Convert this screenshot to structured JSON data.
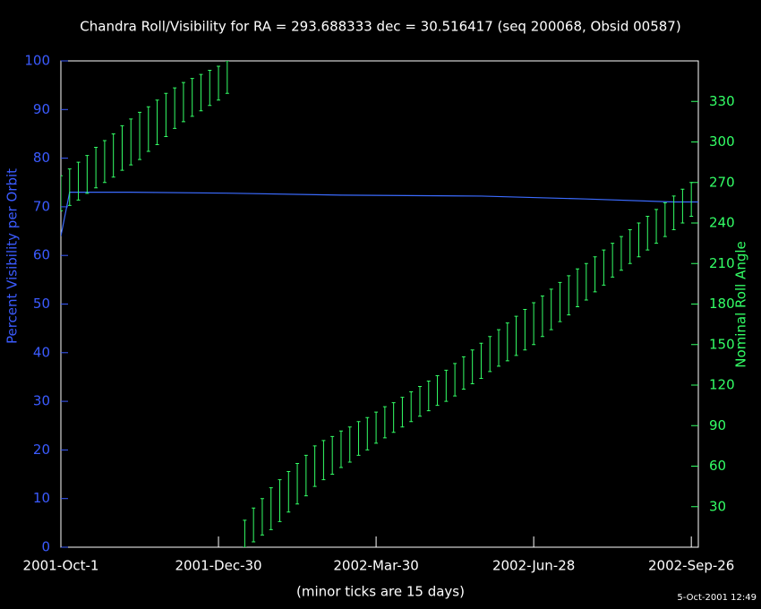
{
  "chart_data": {
    "type": "line",
    "title": "Chandra Roll/Visibility for RA = 293.688333 dec = 30.516417 (seq 200068, Obsid 00587)",
    "ylabel": "Percent Visibility per Orbit",
    "y2label": "Nominal Roll Angle",
    "xlabel": "(minor ticks are 15 days)",
    "footnote": "5-Oct-2001 12:49",
    "xlim": [
      "2001-10-01",
      "2002-09-30"
    ],
    "xticks": [
      {
        "value": "2001-10-01",
        "label": "2001-Oct-1"
      },
      {
        "value": "2001-12-30",
        "label": "2001-Dec-30"
      },
      {
        "value": "2002-03-30",
        "label": "2002-Mar-30"
      },
      {
        "value": "2002-06-28",
        "label": "2002-Jun-28"
      },
      {
        "value": "2002-09-26",
        "label": "2002-Sep-26"
      }
    ],
    "ylim": [
      0,
      100
    ],
    "yticks": [
      0,
      10,
      20,
      30,
      40,
      50,
      60,
      70,
      80,
      90,
      100
    ],
    "y2lim": [
      0,
      360
    ],
    "y2ticks": [
      30,
      60,
      90,
      120,
      150,
      180,
      210,
      240,
      270,
      300,
      330
    ],
    "left_color": "#3b5bff",
    "right_color": "#33ff66",
    "visibility": {
      "color": "#3b6bff",
      "x": [
        "2001-10-01",
        "2001-10-06",
        "2001-11-10",
        "2002-01-04",
        "2002-03-10",
        "2002-05-29",
        "2002-07-28",
        "2002-09-16",
        "2002-09-30"
      ],
      "values": [
        64,
        73,
        73,
        72.8,
        72.4,
        72.2,
        71.6,
        71,
        71
      ]
    },
    "roll": {
      "color": "#33ff66",
      "axis": "y2",
      "x": [
        "2001-10-01",
        "2001-10-06",
        "2001-10-11",
        "2001-10-16",
        "2001-10-21",
        "2001-10-26",
        "2001-10-31",
        "2001-11-05",
        "2001-11-10",
        "2001-11-15",
        "2001-11-20",
        "2001-11-25",
        "2001-11-30",
        "2001-12-05",
        "2001-12-10",
        "2001-12-15",
        "2001-12-20",
        "2001-12-25",
        "2001-12-30",
        "2002-01-04",
        "2002-01-14",
        "2002-01-19",
        "2002-01-24",
        "2002-01-29",
        "2002-02-03",
        "2002-02-08",
        "2002-02-13",
        "2002-02-18",
        "2002-02-23",
        "2002-02-28",
        "2002-03-05",
        "2002-03-10",
        "2002-03-15",
        "2002-03-20",
        "2002-03-25",
        "2002-03-30",
        "2002-04-04",
        "2002-04-09",
        "2002-04-14",
        "2002-04-19",
        "2002-04-24",
        "2002-04-29",
        "2002-05-04",
        "2002-05-09",
        "2002-05-14",
        "2002-05-19",
        "2002-05-24",
        "2002-05-29",
        "2002-06-03",
        "2002-06-08",
        "2002-06-13",
        "2002-06-18",
        "2002-06-23",
        "2002-06-28",
        "2002-07-03",
        "2002-07-08",
        "2002-07-13",
        "2002-07-18",
        "2002-07-23",
        "2002-07-28",
        "2002-08-02",
        "2002-08-07",
        "2002-08-12",
        "2002-08-17",
        "2002-08-22",
        "2002-08-27",
        "2002-09-01",
        "2002-09-06",
        "2002-09-11",
        "2002-09-16",
        "2002-09-21",
        "2002-09-26"
      ],
      "low": [
        249,
        253,
        257,
        262,
        266,
        270,
        274,
        279,
        283,
        287,
        293,
        298,
        304,
        310,
        315,
        319,
        323,
        327,
        331,
        336,
        0,
        4,
        9,
        13,
        19,
        26,
        32,
        38,
        45,
        50,
        54,
        59,
        63,
        68,
        72,
        77,
        81,
        85,
        89,
        93,
        97,
        101,
        105,
        108,
        112,
        117,
        121,
        125,
        130,
        134,
        138,
        142,
        146,
        150,
        156,
        161,
        167,
        172,
        178,
        183,
        189,
        194,
        200,
        205,
        210,
        215,
        220,
        225,
        230,
        235,
        240,
        245
      ],
      "high": [
        275,
        280,
        285,
        290,
        296,
        301,
        306,
        312,
        317,
        322,
        326,
        331,
        336,
        340,
        344,
        347,
        350,
        353,
        356,
        360,
        20,
        29,
        36,
        44,
        50,
        56,
        62,
        68,
        75,
        79,
        82,
        86,
        89,
        93,
        96,
        100,
        104,
        107,
        111,
        115,
        119,
        123,
        127,
        131,
        136,
        141,
        146,
        151,
        156,
        161,
        166,
        171,
        176,
        181,
        186,
        191,
        196,
        201,
        206,
        210,
        215,
        220,
        225,
        230,
        235,
        240,
        245,
        250,
        255,
        260,
        265,
        270
      ]
    }
  }
}
